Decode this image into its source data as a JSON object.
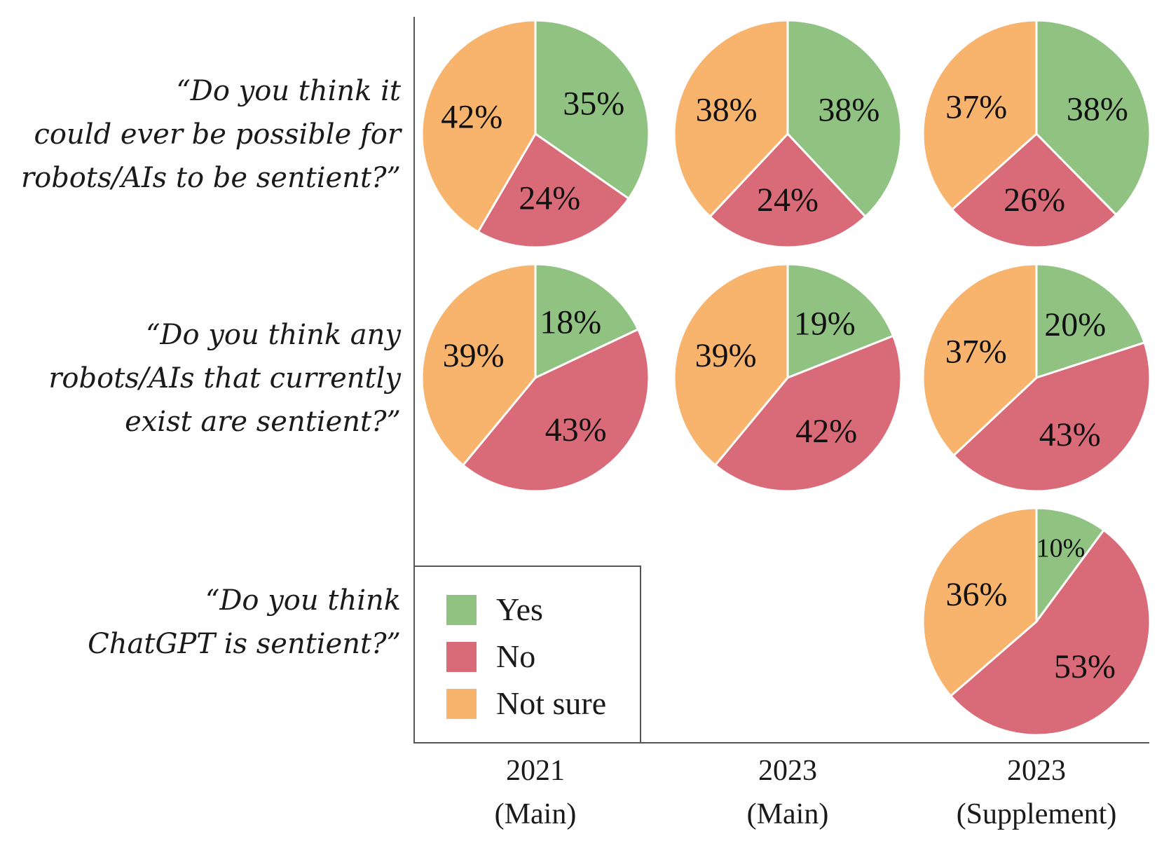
{
  "chart_data": {
    "type": "pie",
    "colors": {
      "Yes": "#90c382",
      "No": "#d96a78",
      "Not sure": "#f8b36c"
    },
    "legend": {
      "placement": "bottom-left",
      "entries": [
        "Yes",
        "No",
        "Not sure"
      ]
    },
    "columns": [
      {
        "line1": "2021",
        "line2": "(Main)"
      },
      {
        "line1": "2023",
        "line2": "(Main)"
      },
      {
        "line1": "2023",
        "line2": "(Supplement)"
      }
    ],
    "rows": [
      {
        "question_lines": [
          "“Do you think it",
          "could ever be possible for",
          "robots/AIs to be sentient?”"
        ]
      },
      {
        "question_lines": [
          "“Do you think any",
          "robots/AIs that currently",
          "exist are sentient?”"
        ]
      },
      {
        "question_lines": [
          "“Do you think",
          "ChatGPT is sentient?”"
        ]
      }
    ],
    "pies": [
      {
        "row": 0,
        "col": 0,
        "slices": [
          {
            "label": "Yes",
            "value": 35,
            "text": "35%"
          },
          {
            "label": "No",
            "value": 24,
            "text": "24%"
          },
          {
            "label": "Not sure",
            "value": 42,
            "text": "42%"
          }
        ]
      },
      {
        "row": 0,
        "col": 1,
        "slices": [
          {
            "label": "Yes",
            "value": 38,
            "text": "38%"
          },
          {
            "label": "No",
            "value": 24,
            "text": "24%"
          },
          {
            "label": "Not sure",
            "value": 38,
            "text": "38%"
          }
        ]
      },
      {
        "row": 0,
        "col": 2,
        "slices": [
          {
            "label": "Yes",
            "value": 38,
            "text": "38%"
          },
          {
            "label": "No",
            "value": 26,
            "text": "26%"
          },
          {
            "label": "Not sure",
            "value": 37,
            "text": "37%"
          }
        ]
      },
      {
        "row": 1,
        "col": 0,
        "slices": [
          {
            "label": "Yes",
            "value": 18,
            "text": "18%"
          },
          {
            "label": "No",
            "value": 43,
            "text": "43%"
          },
          {
            "label": "Not sure",
            "value": 39,
            "text": "39%"
          }
        ]
      },
      {
        "row": 1,
        "col": 1,
        "slices": [
          {
            "label": "Yes",
            "value": 19,
            "text": "19%"
          },
          {
            "label": "No",
            "value": 42,
            "text": "42%"
          },
          {
            "label": "Not sure",
            "value": 39,
            "text": "39%"
          }
        ]
      },
      {
        "row": 1,
        "col": 2,
        "slices": [
          {
            "label": "Yes",
            "value": 20,
            "text": "20%"
          },
          {
            "label": "No",
            "value": 43,
            "text": "43%"
          },
          {
            "label": "Not sure",
            "value": 37,
            "text": "37%"
          }
        ]
      },
      {
        "row": 2,
        "col": 2,
        "slices": [
          {
            "label": "Yes",
            "value": 10,
            "text": "10%"
          },
          {
            "label": "No",
            "value": 53,
            "text": "53%"
          },
          {
            "label": "Not sure",
            "value": 36,
            "text": "36%"
          }
        ]
      }
    ]
  }
}
